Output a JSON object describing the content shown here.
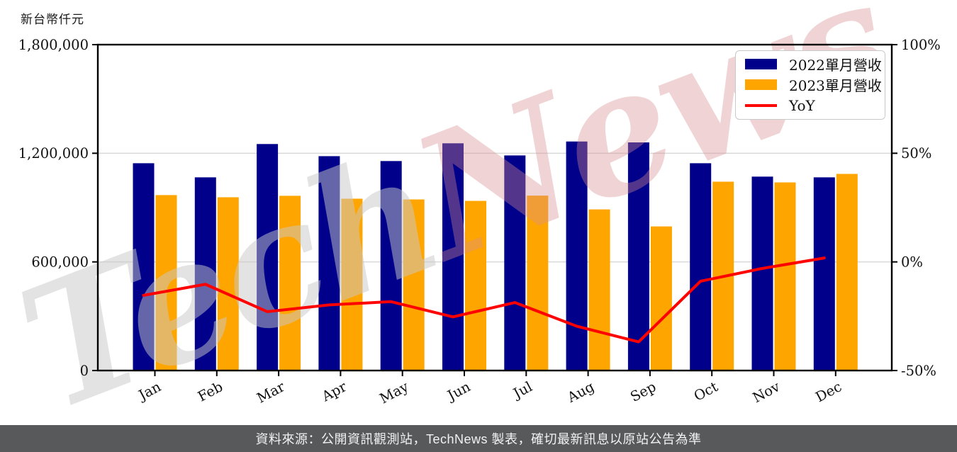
{
  "chart_data": {
    "type": "bar",
    "unit_label": "新台幣仟元",
    "categories": [
      "Jan",
      "Feb",
      "Mar",
      "Apr",
      "May",
      "Jun",
      "Jul",
      "Aug",
      "Sep",
      "Oct",
      "Nov",
      "Dec"
    ],
    "series": [
      {
        "name": "2022單月營收",
        "type": "bar",
        "axis": "left",
        "color": "#00008B",
        "values": [
          1145000,
          1067000,
          1251000,
          1184000,
          1157000,
          1255000,
          1188000,
          1265000,
          1260000,
          1145000,
          1071000,
          1067000
        ]
      },
      {
        "name": "2023單月營收",
        "type": "bar",
        "axis": "left",
        "color": "#FFA500",
        "values": [
          969000,
          957000,
          965000,
          949000,
          945000,
          937000,
          966000,
          890000,
          796000,
          1043000,
          1039000,
          1086000
        ]
      },
      {
        "name": "YoY",
        "type": "line",
        "axis": "right",
        "color": "#FF0000",
        "unit": "%",
        "values": [
          -15.4,
          -10.3,
          -22.9,
          -19.8,
          -18.3,
          -25.3,
          -18.7,
          -29.6,
          -36.8,
          -8.9,
          -3.0,
          1.8
        ]
      }
    ],
    "left_axis": {
      "min": 0,
      "max": 1800000,
      "tick_values": [
        0,
        600000,
        1200000,
        1800000
      ],
      "tick_labels": [
        "0",
        "600,000",
        "1,200,000",
        "1,800,000"
      ],
      "grid_values": [
        600000,
        1200000
      ]
    },
    "right_axis": {
      "min": -50,
      "max": 100,
      "tick_values": [
        -50,
        0,
        50,
        100
      ],
      "tick_labels": [
        "-50%",
        "0%",
        "50%",
        "100%"
      ]
    },
    "legend": {
      "position": "top-right",
      "entries": [
        "2022單月營收",
        "2023單月營收",
        "YoY"
      ]
    },
    "grid": true,
    "gridline_color": "#D9D9D9",
    "axis_color": "#000000"
  },
  "watermark": {
    "part1": "Tech",
    "part2": "News",
    "color1": "#C9C9C9",
    "color2": "#D98E90"
  },
  "footer": {
    "text": "資料來源：公開資訊觀測站，TechNews 製表，確切最新訊息以原站公告為準",
    "background": "#58595B",
    "text_color": "#F2F2F2"
  }
}
